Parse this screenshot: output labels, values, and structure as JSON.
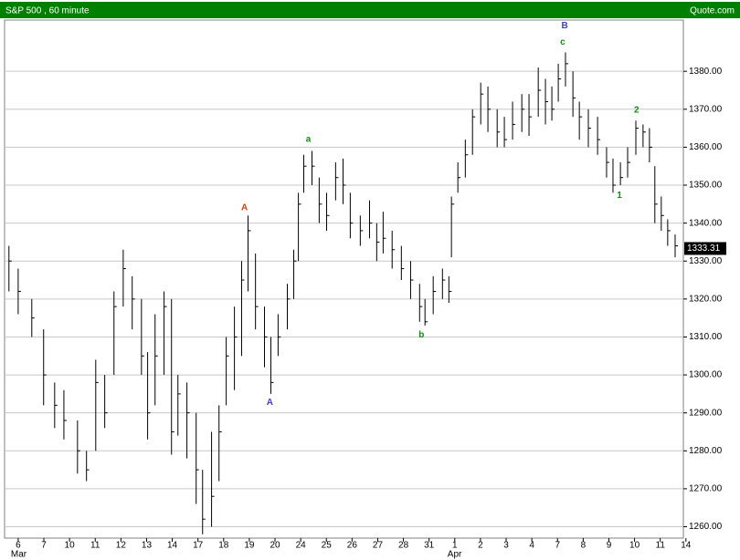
{
  "chart_data": {
    "type": "hlc",
    "title": "S&P 500 , 60 minute",
    "source": "Quote.com",
    "x": [
      -0.36,
      0,
      0.53,
      0.99,
      1.42,
      1.78,
      2.31,
      2.66,
      3.02,
      3.37,
      3.73,
      4.09,
      4.44,
      4.8,
      5.04,
      5.33,
      5.68,
      5.97,
      6.22,
      6.57,
      6.93,
      7.18,
      7.53,
      7.82,
      8.1,
      8.42,
      8.7,
      8.95,
      9.24,
      9.59,
      9.84,
      10.12,
      10.48,
      10.73,
      10.91,
      11.12,
      11.44,
      11.72,
      12.01,
      12.36,
      12.65,
      12.93,
      13.32,
      13.68,
      13.96,
      14.21,
      14.56,
      14.92,
      15.28,
      15.63,
      15.84,
      16.16,
      16.52,
      16.77,
      16.87,
      17.12,
      17.41,
      17.69,
      18.01,
      18.29,
      18.65,
      18.93,
      19.25,
      19.61,
      19.89,
      20.25,
      20.53,
      20.78,
      21.03,
      21.31,
      21.6,
      21.85,
      22.2,
      22.56,
      22.91,
      23.16,
      23.45,
      23.73,
      24.05,
      24.33,
      24.58,
      24.79,
      25.04,
      25.29,
      25.58
    ],
    "high": [
      1334,
      1328,
      1320,
      1312,
      1298,
      1296,
      1288,
      1280,
      1304,
      1300,
      1322,
      1333,
      1326,
      1320,
      1306,
      1316,
      1322,
      1320,
      1300,
      1298,
      1290,
      1275,
      1285,
      1292,
      1310,
      1318,
      1330,
      1342,
      1332,
      1318,
      1310,
      1316,
      1324,
      1333,
      1348,
      1358,
      1359,
      1352,
      1348,
      1356,
      1357,
      1348,
      1342,
      1346,
      1340,
      1343,
      1338,
      1334,
      1330,
      1324,
      1320,
      1326,
      1328,
      1326,
      1347,
      1356,
      1362,
      1370,
      1377,
      1376,
      1370,
      1368,
      1372,
      1374,
      1374,
      1381,
      1378,
      1376,
      1382,
      1385,
      1380,
      1372,
      1370,
      1368,
      1360,
      1357,
      1356,
      1360,
      1367,
      1366,
      1365,
      1355,
      1347,
      1341,
      1337
    ],
    "low": [
      1322,
      1316,
      1310,
      1292,
      1286,
      1283,
      1274,
      1272,
      1280,
      1286,
      1300,
      1318,
      1312,
      1300,
      1283,
      1292,
      1300,
      1279,
      1284,
      1278,
      1266,
      1258,
      1260,
      1272,
      1292,
      1296,
      1305,
      1322,
      1312,
      1302,
      1295,
      1305,
      1312,
      1320,
      1330,
      1348,
      1350,
      1340,
      1338,
      1346,
      1345,
      1336,
      1334,
      1336,
      1330,
      1332,
      1328,
      1325,
      1320,
      1314,
      1313,
      1316,
      1320,
      1319,
      1331,
      1348,
      1352,
      1358,
      1366,
      1364,
      1360,
      1360,
      1362,
      1364,
      1363,
      1368,
      1366,
      1367,
      1372,
      1376,
      1368,
      1362,
      1360,
      1358,
      1352,
      1348,
      1350,
      1352,
      1358,
      1360,
      1356,
      1340,
      1338,
      1334,
      1331
    ],
    "close": [
      1330,
      1322,
      1315,
      1300,
      1292,
      1288,
      1280,
      1275,
      1298,
      1290,
      1318,
      1328,
      1320,
      1305,
      1290,
      1305,
      1318,
      1285,
      1295,
      1290,
      1275,
      1262,
      1268,
      1285,
      1305,
      1310,
      1325,
      1338,
      1318,
      1310,
      1298,
      1310,
      1320,
      1330,
      1345,
      1355,
      1355,
      1345,
      1342,
      1352,
      1350,
      1340,
      1338,
      1340,
      1335,
      1336,
      1333,
      1328,
      1325,
      1318,
      1314,
      1322,
      1325,
      1322,
      1345,
      1352,
      1358,
      1368,
      1374,
      1370,
      1364,
      1362,
      1366,
      1370,
      1368,
      1375,
      1372,
      1370,
      1378,
      1382,
      1373,
      1368,
      1365,
      1362,
      1356,
      1350,
      1352,
      1356,
      1365,
      1364,
      1360,
      1345,
      1342,
      1338,
      1334
    ],
    "color": "#000000",
    "xlim": [
      -0.53,
      25.9
    ],
    "ylim": [
      1257,
      1393.5
    ],
    "xticks": [
      {
        "value": 0,
        "label": "6"
      },
      {
        "value": 1,
        "label": "7"
      },
      {
        "value": 2,
        "label": "10"
      },
      {
        "value": 3,
        "label": "11"
      },
      {
        "value": 4,
        "label": "12"
      },
      {
        "value": 5,
        "label": "13"
      },
      {
        "value": 6,
        "label": "14"
      },
      {
        "value": 7,
        "label": "17"
      },
      {
        "value": 8,
        "label": "18"
      },
      {
        "value": 9,
        "label": "19"
      },
      {
        "value": 10,
        "label": "20"
      },
      {
        "value": 11,
        "label": "24"
      },
      {
        "value": 12,
        "label": "25"
      },
      {
        "value": 13,
        "label": "26"
      },
      {
        "value": 14,
        "label": "27"
      },
      {
        "value": 15,
        "label": "28"
      },
      {
        "value": 16,
        "label": "31"
      },
      {
        "value": 17,
        "label": "1"
      },
      {
        "value": 18,
        "label": "2"
      },
      {
        "value": 19,
        "label": "3"
      },
      {
        "value": 20,
        "label": "4"
      },
      {
        "value": 21,
        "label": "7"
      },
      {
        "value": 22,
        "label": "8"
      },
      {
        "value": 23,
        "label": "9"
      },
      {
        "value": 24,
        "label": "10"
      },
      {
        "value": 25,
        "label": "11"
      },
      {
        "value": 26,
        "label": "14"
      }
    ],
    "month_labels": [
      {
        "value": 0,
        "label": "Mar"
      },
      {
        "value": 17,
        "label": "Apr"
      }
    ],
    "yticks": [
      {
        "value": 1260,
        "label": "1260.00"
      },
      {
        "value": 1270,
        "label": "1270.00"
      },
      {
        "value": 1280,
        "label": "1280.00"
      },
      {
        "value": 1290,
        "label": "1290.00"
      },
      {
        "value": 1300,
        "label": "1300.00"
      },
      {
        "value": 1310,
        "label": "1310.00"
      },
      {
        "value": 1320,
        "label": "1320.00"
      },
      {
        "value": 1330,
        "label": "1330.00"
      },
      {
        "value": 1340,
        "label": "1340.00"
      },
      {
        "value": 1350,
        "label": "1350.00"
      },
      {
        "value": 1360,
        "label": "1360.00"
      },
      {
        "value": 1370,
        "label": "1370.00"
      },
      {
        "value": 1380,
        "label": "1380.00"
      }
    ],
    "grid": true,
    "last_price": 1333.31,
    "annotations": [
      {
        "text": "A",
        "x": 8.81,
        "y": 1344,
        "color": "#d04010"
      },
      {
        "text": "A",
        "x": 9.8,
        "y": 1292.7,
        "color": "#4040c0"
      },
      {
        "text": "a",
        "x": 11.3,
        "y": 1362,
        "color": "#109010"
      },
      {
        "text": "b",
        "x": 15.7,
        "y": 1310.5,
        "color": "#109010"
      },
      {
        "text": "B",
        "x": 21.28,
        "y": 1392,
        "color": "#4040c0"
      },
      {
        "text": "c",
        "x": 21.2,
        "y": 1387.6,
        "color": "#109010"
      },
      {
        "text": "2",
        "x": 24.08,
        "y": 1369.8,
        "color": "#109010"
      },
      {
        "text": "1",
        "x": 23.41,
        "y": 1347.3,
        "color": "#109010"
      }
    ]
  }
}
